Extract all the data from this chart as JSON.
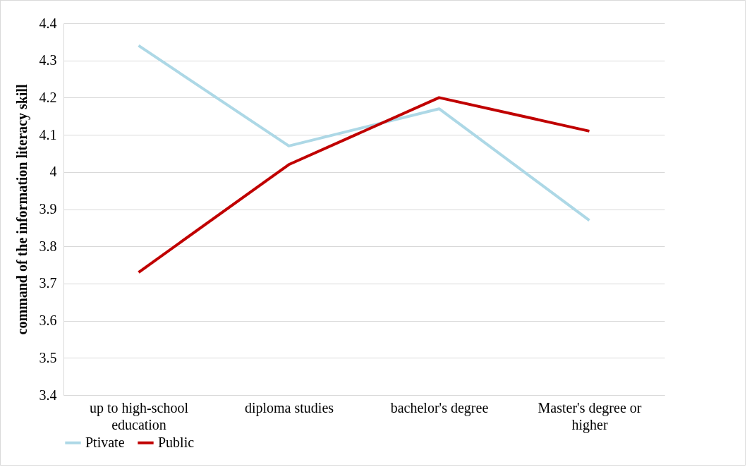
{
  "chart_data": {
    "type": "line",
    "ylabel": "command of the information literacy skill",
    "categories": [
      "up to high-school education",
      "diploma studies",
      "bachelor's degree",
      "Master's degree or higher"
    ],
    "series": [
      {
        "name": "Ptivate",
        "color": "#add8e6",
        "values": [
          4.34,
          4.07,
          4.17,
          3.87
        ]
      },
      {
        "name": "Public",
        "color": "#c00000",
        "values": [
          3.73,
          4.02,
          4.2,
          4.11
        ]
      }
    ],
    "ylim": [
      3.4,
      4.4
    ],
    "yticks": [
      3.4,
      3.5,
      3.6,
      3.7,
      3.8,
      3.9,
      4,
      4.1,
      4.2,
      4.3,
      4.4
    ],
    "grid": "y",
    "legend": "bottom",
    "marker": "none",
    "line_style": "solid"
  }
}
